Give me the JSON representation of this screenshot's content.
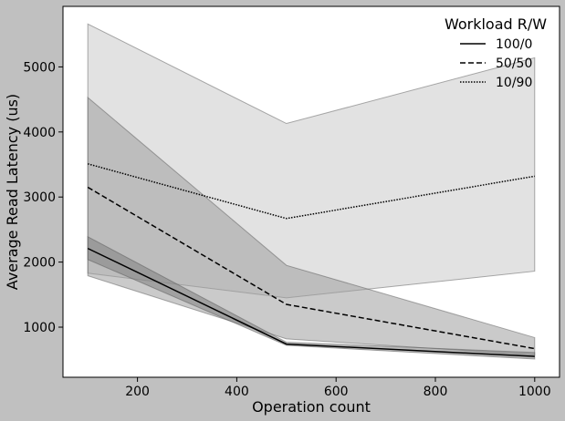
{
  "chart_data": {
    "type": "line",
    "title": "",
    "xlabel": "Operation count",
    "ylabel": "Average Read Latency (us)",
    "xlim": [
      50,
      1050
    ],
    "ylim": [
      230,
      5930
    ],
    "x_ticks": [
      200,
      400,
      600,
      800,
      1000
    ],
    "y_ticks": [
      1000,
      2000,
      3000,
      4000,
      5000
    ],
    "grid": false,
    "legend": {
      "title": "Workload R/W",
      "placement": "top-right"
    },
    "x": [
      100,
      500,
      1000
    ],
    "series": [
      {
        "name": "100/0",
        "line_style": "solid",
        "values": [
          2210,
          740,
          550
        ],
        "band_lower": [
          2040,
          720,
          510
        ],
        "band_upper": [
          2390,
          770,
          610
        ],
        "band_color": "#7f7f7f"
      },
      {
        "name": "50/50",
        "line_style": "dashed",
        "values": [
          3150,
          1350,
          670
        ],
        "band_lower": [
          1790,
          820,
          570
        ],
        "band_upper": [
          4530,
          1950,
          840
        ],
        "band_color": "#9f9f9f"
      },
      {
        "name": "10/90",
        "line_style": "dotted",
        "values": [
          3510,
          2670,
          3320
        ],
        "band_lower": [
          1830,
          1450,
          1860
        ],
        "band_upper": [
          5660,
          4130,
          5140
        ],
        "band_color": "#cbcbcb"
      }
    ],
    "colors": {
      "figure_background": "#c0c0c0",
      "axes_background": "#ffffff",
      "line": "#000000"
    }
  }
}
